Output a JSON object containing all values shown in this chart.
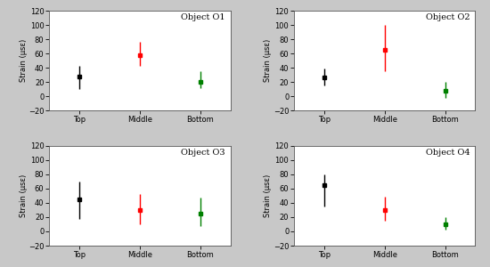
{
  "subplots": [
    {
      "title": "Object O1",
      "positions": [
        "Top",
        "Middle",
        "Bottom"
      ],
      "values": [
        28,
        58,
        20
      ],
      "yerr_low": [
        18,
        15,
        8
      ],
      "yerr_high": [
        15,
        18,
        15
      ],
      "colors": [
        "black",
        "red",
        "green"
      ],
      "ylim": [
        -20,
        120
      ],
      "yticks": [
        -20,
        0,
        20,
        40,
        60,
        80,
        100,
        120
      ]
    },
    {
      "title": "Object O2",
      "positions": [
        "Top",
        "Middle",
        "Bottom"
      ],
      "values": [
        27,
        65,
        8
      ],
      "yerr_low": [
        12,
        30,
        10
      ],
      "yerr_high": [
        12,
        35,
        12
      ],
      "colors": [
        "black",
        "red",
        "green"
      ],
      "ylim": [
        -20,
        120
      ],
      "yticks": [
        -20,
        0,
        20,
        40,
        60,
        80,
        100,
        120
      ]
    },
    {
      "title": "Object O3",
      "positions": [
        "Top",
        "Middle",
        "Bottom"
      ],
      "values": [
        45,
        30,
        25
      ],
      "yerr_low": [
        28,
        20,
        18
      ],
      "yerr_high": [
        25,
        22,
        22
      ],
      "colors": [
        "black",
        "red",
        "green"
      ],
      "ylim": [
        -20,
        120
      ],
      "yticks": [
        -20,
        0,
        20,
        40,
        60,
        80,
        100,
        120
      ]
    },
    {
      "title": "Object O4",
      "positions": [
        "Top",
        "Middle",
        "Bottom"
      ],
      "values": [
        65,
        30,
        10
      ],
      "yerr_low": [
        30,
        15,
        8
      ],
      "yerr_high": [
        15,
        18,
        10
      ],
      "colors": [
        "black",
        "red",
        "green"
      ],
      "ylim": [
        -20,
        120
      ],
      "yticks": [
        -20,
        0,
        20,
        40,
        60,
        80,
        100,
        120
      ]
    }
  ],
  "ylabel": "Strain (μsε)",
  "background_color": "#c8c8c8",
  "panel_color": "#ffffff",
  "fig_width": 5.5,
  "fig_height": 3.0,
  "tick_fontsize": 6,
  "label_fontsize": 6,
  "title_fontsize": 7,
  "marker_size": 3,
  "elinewidth": 1.0
}
